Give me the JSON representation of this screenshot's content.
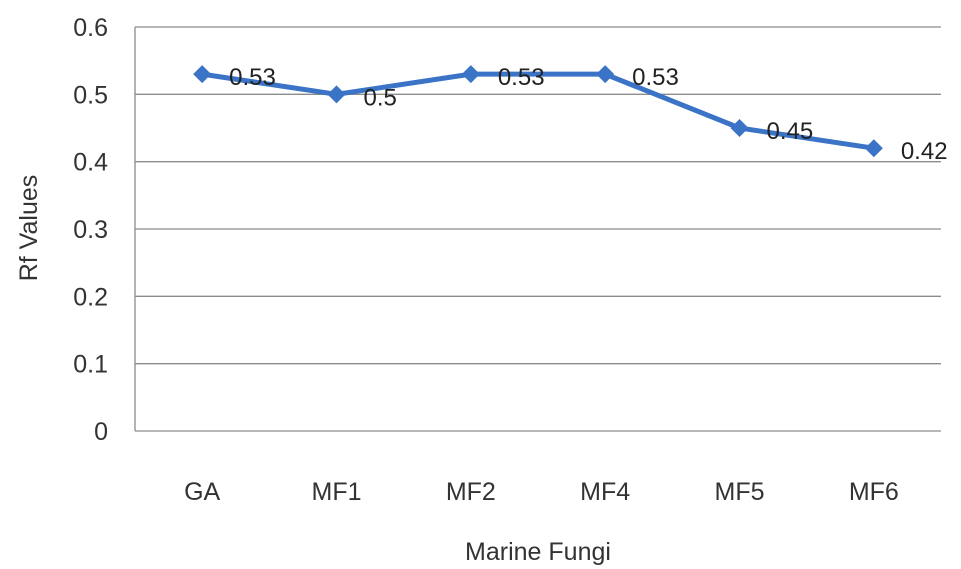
{
  "chart_data": {
    "type": "line",
    "title": "",
    "xlabel": "Marine Fungi",
    "ylabel": "Rf Values",
    "categories": [
      "GA",
      "MF1",
      "MF2",
      "MF4",
      "MF5",
      "MF6"
    ],
    "y_ticks": [
      "0",
      "0.1",
      "0.2",
      "0.3",
      "0.4",
      "0.5",
      "0.6"
    ],
    "ylim": [
      0,
      0.6
    ],
    "grid": "horizontal",
    "legend": "none",
    "series": [
      {
        "values": [
          0.53,
          0.5,
          0.53,
          0.53,
          0.45,
          0.42
        ],
        "labels": [
          "0.53",
          "0.5",
          "0.53",
          "0.53",
          "0.45",
          "0.42"
        ],
        "marker": "diamond",
        "color": "#3b74c6"
      }
    ],
    "colors": {
      "grid": "#8c8c8c",
      "axis": "#8c8c8c",
      "line": "#3b74c6",
      "text": "#333333"
    }
  }
}
